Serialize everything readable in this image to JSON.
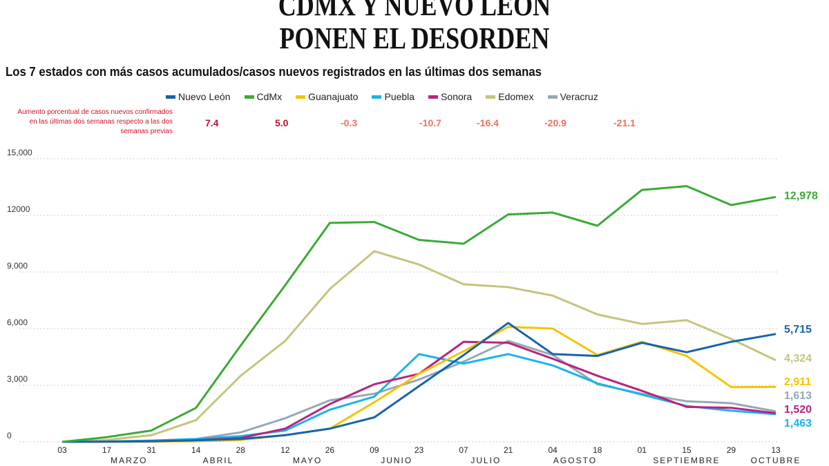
{
  "title_lines": [
    "CDMX Y NUEVO LEÓN",
    "PONEN EL DESORDEN"
  ],
  "subtitle": "Los 7 estados con más casos acumulados/casos nuevos registrados en las últimas dos semanas",
  "pct_label": "Aumento porcentual de casos nuevos confirmados en las últimas dos semanas respecto a las dos semanas previas",
  "chart_data": {
    "type": "line",
    "title": "CDMX Y NUEVO LEÓN PONEN EL DESORDEN",
    "subtitle": "Los 7 estados con más casos acumulados/casos nuevos registrados en las últimas dos semanas",
    "x": [
      "03",
      "17",
      "31",
      "14",
      "28",
      "12",
      "26",
      "09",
      "23",
      "07",
      "21",
      "04",
      "18",
      "01",
      "15",
      "29",
      "13"
    ],
    "x_months": [
      {
        "label": "MARZO",
        "between": [
          "17",
          "31"
        ]
      },
      {
        "label": "ABRIL",
        "between": [
          "14",
          "28"
        ]
      },
      {
        "label": "MAYO",
        "between": [
          "12",
          "26"
        ]
      },
      {
        "label": "JUNIO",
        "between": [
          "09",
          "23"
        ]
      },
      {
        "label": "JULIO",
        "between": [
          "07",
          "21"
        ]
      },
      {
        "label": "AGOSTO",
        "between": [
          "04",
          "18"
        ]
      },
      {
        "label": "SEPTIEMBRE",
        "between": [
          "01",
          "29"
        ]
      },
      {
        "label": "OCTUBRE",
        "between": [
          "13",
          "13"
        ]
      }
    ],
    "ylim": [
      0,
      15000
    ],
    "yticks": [
      "0",
      "3,000",
      "6,000",
      "9,000",
      "12000",
      "15,000"
    ],
    "ytick_values": [
      0,
      3000,
      6000,
      9000,
      12000,
      15000
    ],
    "grid": true,
    "legend_position": "top",
    "series": [
      {
        "name": "Nuevo León",
        "color": "#1464ad",
        "pct": "7.4",
        "pct_color": "#c0102a",
        "end_label": "5,715",
        "values": [
          0,
          10,
          30,
          80,
          150,
          350,
          700,
          1300,
          2950,
          4600,
          6300,
          4650,
          4550,
          5250,
          4750,
          5300,
          5715
        ]
      },
      {
        "name": "CdMx",
        "color": "#3aaa35",
        "pct": "5.0",
        "pct_color": "#c0102a",
        "end_label": "12,978",
        "values": [
          0,
          250,
          600,
          1800,
          5100,
          8300,
          11600,
          11650,
          10700,
          10500,
          12050,
          12150,
          11450,
          13350,
          13550,
          12550,
          12978
        ]
      },
      {
        "name": "Guanajuato",
        "color": "#f7c300",
        "pct": "-0.3",
        "pct_color": "#ef6f5e",
        "end_label": "2,911",
        "values": [
          0,
          5,
          10,
          30,
          100,
          350,
          700,
          2100,
          3600,
          4800,
          6100,
          6000,
          4600,
          5300,
          4550,
          2900,
          2911
        ]
      },
      {
        "name": "Puebla",
        "color": "#1ab4e8",
        "pct": "-10.7",
        "pct_color": "#ef6f5e",
        "end_label": "1,463",
        "values": [
          0,
          20,
          60,
          150,
          300,
          600,
          1700,
          2400,
          4650,
          4150,
          4650,
          4050,
          3100,
          2500,
          1900,
          1650,
          1463
        ]
      },
      {
        "name": "Sonora",
        "color": "#b8247e",
        "pct": "-16.4",
        "pct_color": "#ef6f5e",
        "end_label": "1,520",
        "values": [
          0,
          10,
          30,
          80,
          200,
          700,
          2000,
          3050,
          3600,
          5300,
          5250,
          4400,
          3500,
          2700,
          1850,
          1800,
          1520
        ]
      },
      {
        "name": "Edomex",
        "color": "#c4c47e",
        "pct": "-20.9",
        "pct_color": "#ef6f5e",
        "end_label": "4,324",
        "values": [
          0,
          100,
          350,
          1150,
          3500,
          5350,
          8100,
          10100,
          9400,
          8350,
          8200,
          7750,
          6750,
          6250,
          6450,
          5450,
          4324
        ]
      },
      {
        "name": "Veracruz",
        "color": "#97a8b4",
        "pct": "-21.1",
        "pct_color": "#ef6f5e",
        "end_label": "1,613",
        "values": [
          0,
          20,
          70,
          150,
          500,
          1250,
          2200,
          2550,
          3300,
          4250,
          5350,
          4600,
          3050,
          2550,
          2150,
          2050,
          1613
        ]
      }
    ]
  }
}
